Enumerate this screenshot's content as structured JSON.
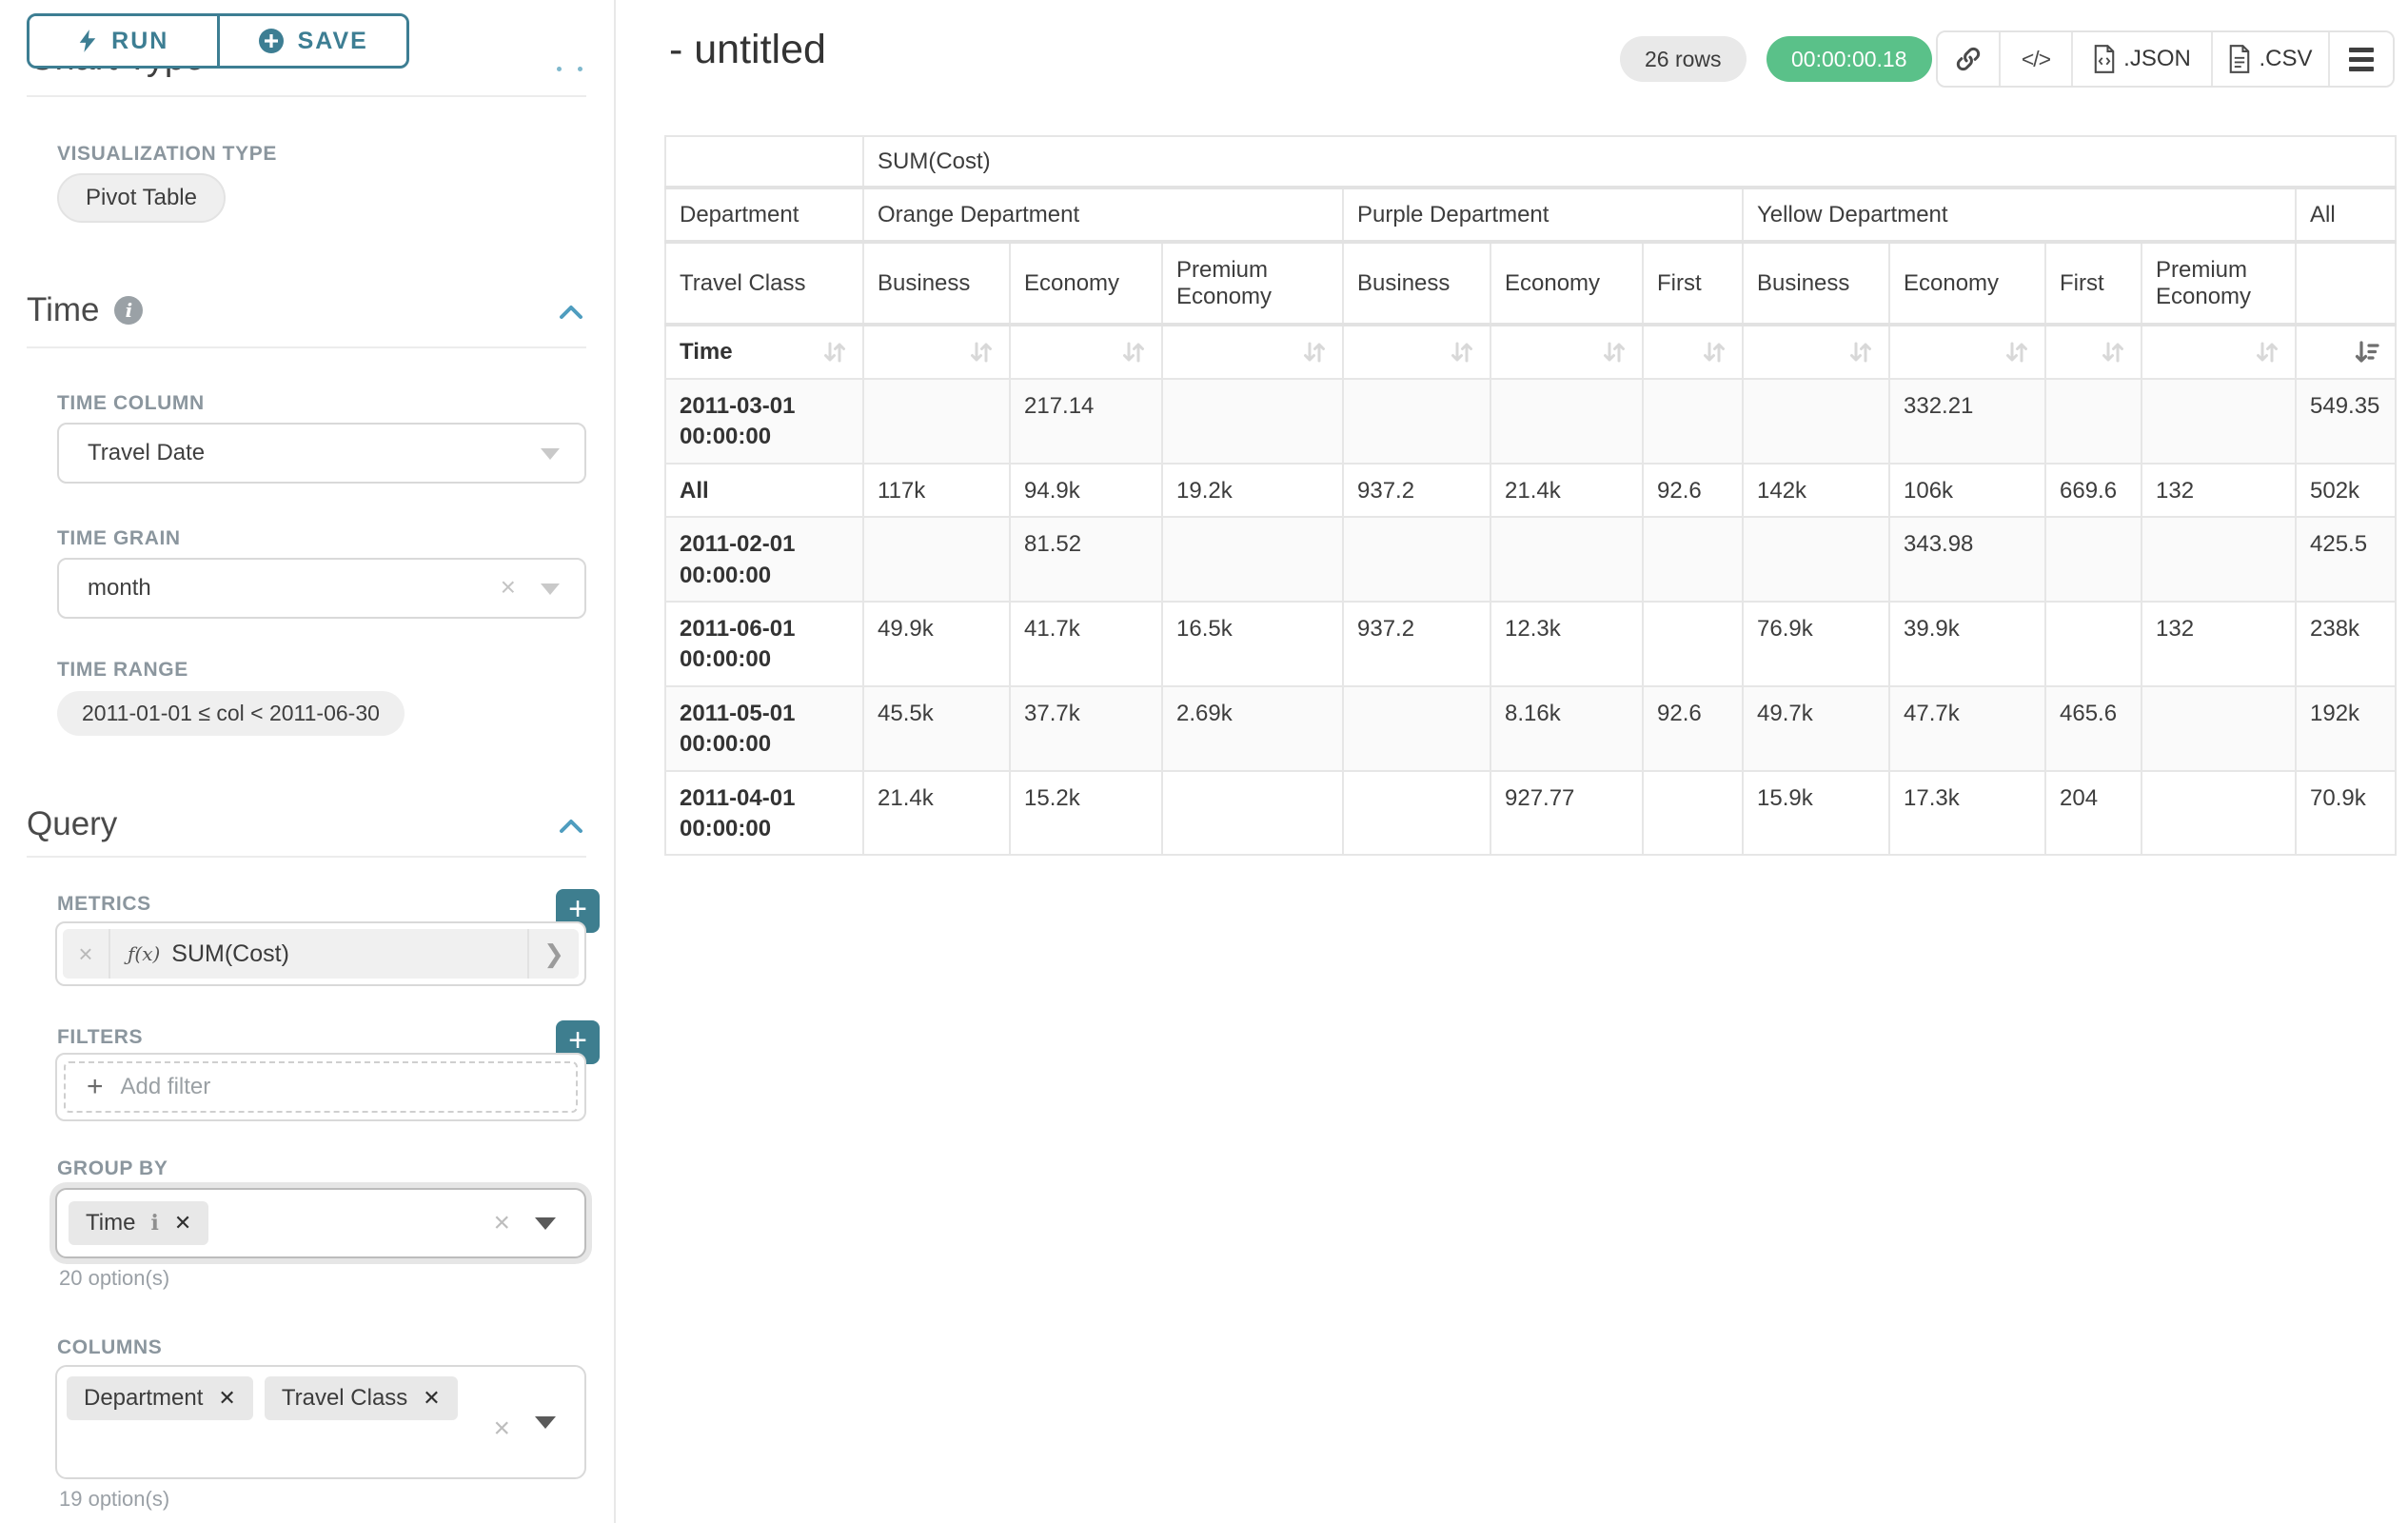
{
  "colors": {
    "accent_teal": "#3d7e93",
    "plus_button_teal": "#3e7e8f",
    "timer_green": "#5ac189",
    "badge_gray": "#e9e9e9"
  },
  "sidebar": {
    "run_label": "RUN",
    "save_label": "SAVE",
    "chart_type_heading": "Chart Type",
    "viz": {
      "label": "VISUALIZATION TYPE",
      "value": "Pivot Table"
    },
    "time": {
      "title": "Time",
      "time_column_label": "TIME COLUMN",
      "time_column_value": "Travel Date",
      "time_grain_label": "TIME GRAIN",
      "time_grain_value": "month",
      "time_range_label": "TIME RANGE",
      "time_range_value": "2011-01-01 ≤ col < 2011-06-30"
    },
    "query": {
      "title": "Query",
      "metrics_label": "METRICS",
      "metric_fx": "ƒ(x)",
      "metric_name": "SUM(Cost)",
      "filters_label": "FILTERS",
      "add_filter_label": "Add filter",
      "group_by_label": "GROUP BY",
      "group_by_chips": [
        {
          "label": "Time",
          "info": true
        }
      ],
      "group_by_helper": "20 option(s)",
      "columns_label": "COLUMNS",
      "columns_chips": [
        {
          "label": "Department"
        },
        {
          "label": "Travel Class"
        }
      ],
      "columns_helper": "19 option(s)"
    }
  },
  "header": {
    "title": "- untitled",
    "rows_badge": "26 rows",
    "timer_badge": "00:00:00.18",
    "export_json_label": ".JSON",
    "export_csv_label": ".CSV"
  },
  "icons": {
    "run": "bolt-icon",
    "save": "plus-circle-icon",
    "share": "link-icon",
    "embed": "code-icon",
    "export": "file-icon",
    "more": "hamburger-menu-icon",
    "sort_inactive": "sort-both-icon",
    "sort_active": "sort-descending-icon"
  },
  "pivot": {
    "metric_header": "SUM(Cost)",
    "corner_label": "Department",
    "row_axis_label": "Travel Class",
    "time_label": "Time",
    "groups": [
      {
        "label": "Orange Department",
        "span": 3
      },
      {
        "label": "Purple Department",
        "span": 3
      },
      {
        "label": "Yellow Department",
        "span": 4
      },
      {
        "label": "All",
        "span": 1
      }
    ],
    "columns": [
      "Business",
      "Economy",
      "Premium Economy",
      "Business",
      "Economy",
      "First",
      "Business",
      "Economy",
      "First",
      "Premium Economy",
      ""
    ],
    "rows": [
      {
        "label": "2011-03-01 00:00:00",
        "short": false,
        "values": [
          "",
          "217.14",
          "",
          "",
          "",
          "",
          "",
          "332.21",
          "",
          "",
          "549.35"
        ]
      },
      {
        "label": "All",
        "short": true,
        "values": [
          "117k",
          "94.9k",
          "19.2k",
          "937.2",
          "21.4k",
          "92.6",
          "142k",
          "106k",
          "669.6",
          "132",
          "502k"
        ]
      },
      {
        "label": "2011-02-01 00:00:00",
        "short": false,
        "values": [
          "",
          "81.52",
          "",
          "",
          "",
          "",
          "",
          "343.98",
          "",
          "",
          "425.5"
        ]
      },
      {
        "label": "2011-06-01 00:00:00",
        "short": false,
        "values": [
          "49.9k",
          "41.7k",
          "16.5k",
          "937.2",
          "12.3k",
          "",
          "76.9k",
          "39.9k",
          "",
          "132",
          "238k"
        ]
      },
      {
        "label": "2011-05-01 00:00:00",
        "short": false,
        "values": [
          "45.5k",
          "37.7k",
          "2.69k",
          "",
          "8.16k",
          "92.6",
          "49.7k",
          "47.7k",
          "465.6",
          "",
          "192k"
        ]
      },
      {
        "label": "2011-04-01 00:00:00",
        "short": false,
        "values": [
          "21.4k",
          "15.2k",
          "",
          "",
          "927.77",
          "",
          "15.9k",
          "17.3k",
          "204",
          "",
          "70.9k"
        ]
      }
    ]
  }
}
